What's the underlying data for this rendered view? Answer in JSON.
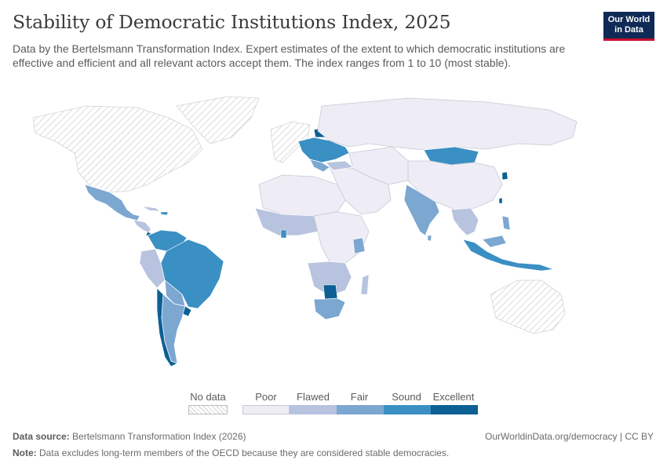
{
  "header": {
    "title": "Stability of Democratic Institutions Index, 2025",
    "subtitle": "Data by the Bertelsmann Transformation Index. Expert estimates of the extent to which democratic institutions are effective and efficient and all relevant actors accept them. The index ranges from 1 to 10 (most stable)."
  },
  "logo": {
    "line1": "Our World",
    "line2": "in Data"
  },
  "legend": {
    "no_data_label": "No data",
    "categories": [
      {
        "label": "Poor",
        "color": "#eeedf5"
      },
      {
        "label": "Flawed",
        "color": "#b8c3df"
      },
      {
        "label": "Fair",
        "color": "#7ba7d1"
      },
      {
        "label": "Sound",
        "color": "#3a8fc3"
      },
      {
        "label": "Excellent",
        "color": "#0d5f94"
      }
    ],
    "no_data_color": "#ffffff"
  },
  "footer": {
    "source_label": "Data source:",
    "source_text": "Bertelsmann Transformation Index (2026)",
    "note_label": "Note:",
    "note_text": "Data excludes long-term members of the OECD because they are considered stable democracies.",
    "url": "OurWorldinData.org/democracy | CC BY"
  }
}
